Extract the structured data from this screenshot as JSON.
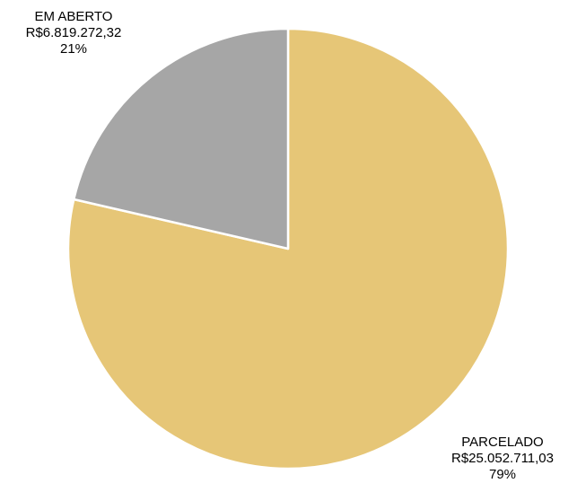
{
  "chart_data": {
    "type": "pie",
    "slices": [
      {
        "label": "PARCELADO",
        "amount_text": "R$25.052.711,03",
        "percent_text": "79%",
        "value": 25052711.03,
        "color": "#E6C677"
      },
      {
        "label": "EM ABERTO",
        "amount_text": "R$6.819.272,32",
        "percent_text": "21%",
        "value": 6819272.32,
        "color": "#A6A6A6"
      }
    ],
    "start_angle": "12 o'clock, clockwise",
    "legend": "none"
  }
}
